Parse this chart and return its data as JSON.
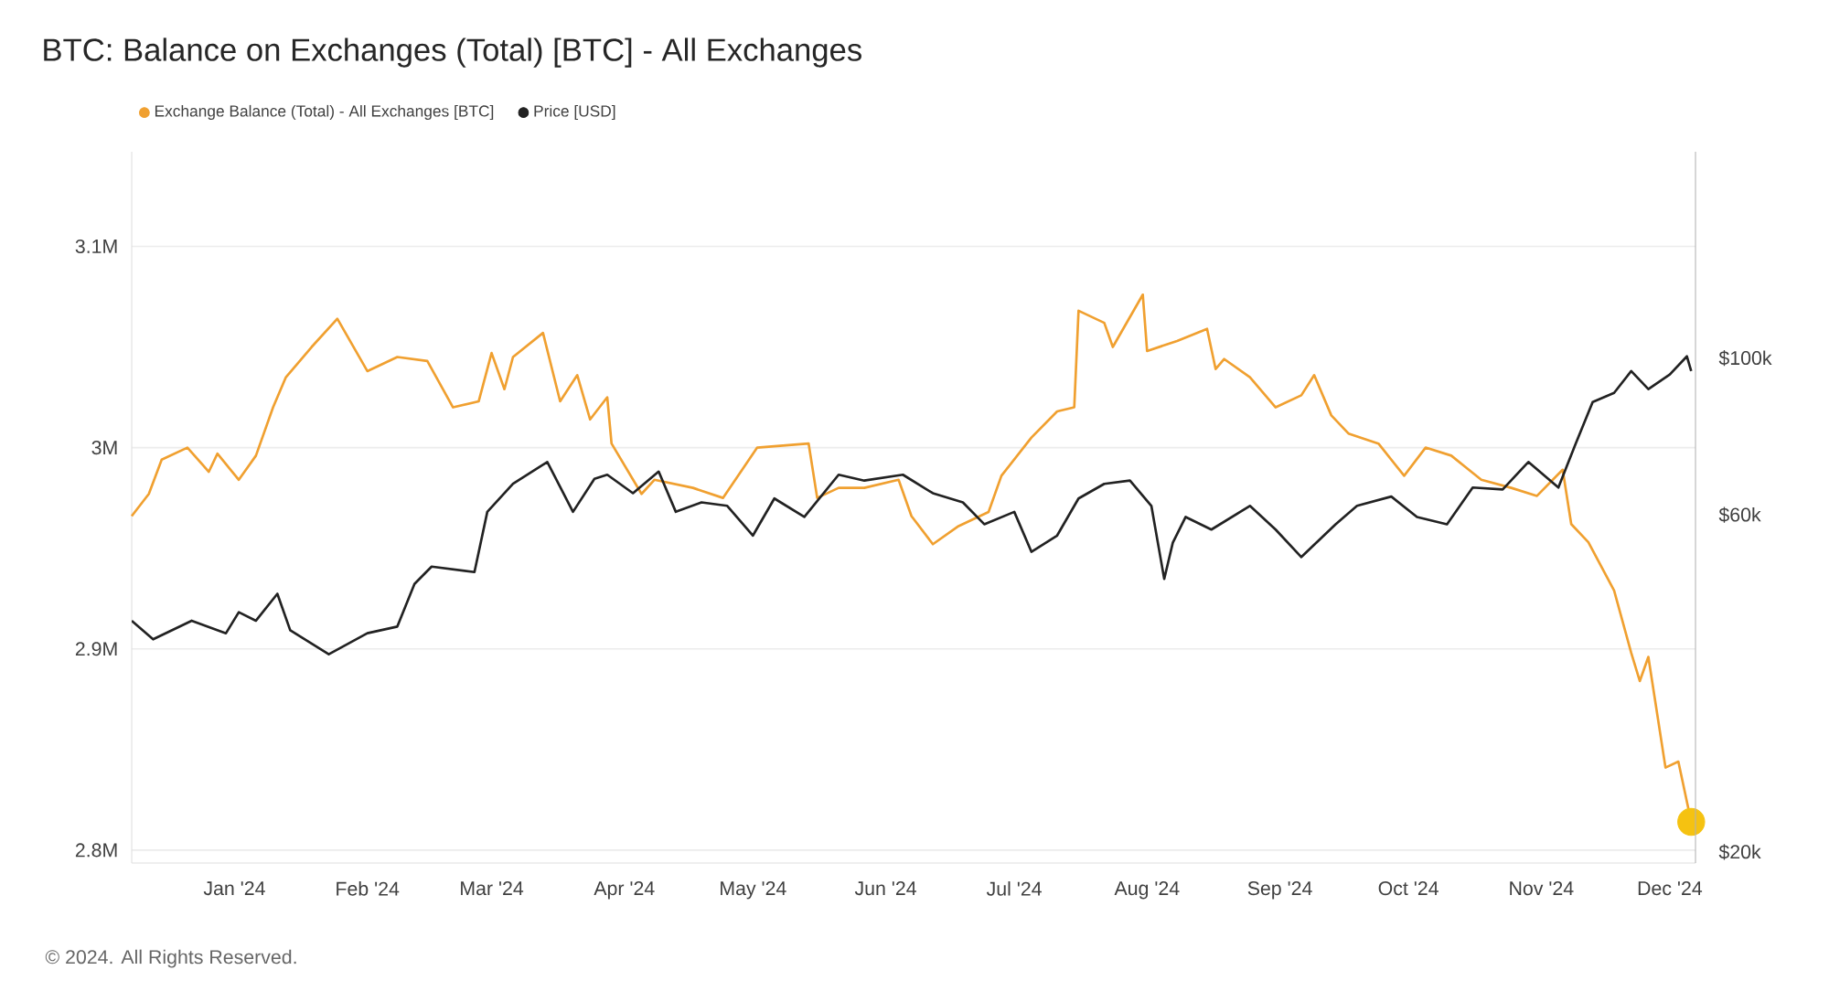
{
  "chart_data": {
    "type": "line",
    "title": "BTC: Balance on Exchanges (Total) [BTC] - All Exchanges",
    "annotations": [
      "© 2024. All Rights Reserved."
    ],
    "xlim": [
      "2023-12-08",
      "2024-12-07"
    ],
    "xticks": [
      {
        "value": "2024-01-01",
        "label": "Jan '24"
      },
      {
        "value": "2024-02-01",
        "label": "Feb '24"
      },
      {
        "value": "2024-03-01",
        "label": "Mar '24"
      },
      {
        "value": "2024-04-01",
        "label": "Apr '24"
      },
      {
        "value": "2024-05-01",
        "label": "May '24"
      },
      {
        "value": "2024-06-01",
        "label": "Jun '24"
      },
      {
        "value": "2024-07-01",
        "label": "Jul '24"
      },
      {
        "value": "2024-08-01",
        "label": "Aug '24"
      },
      {
        "value": "2024-09-01",
        "label": "Sep '24"
      },
      {
        "value": "2024-10-01",
        "label": "Oct '24"
      },
      {
        "value": "2024-11-01",
        "label": "Nov '24"
      },
      {
        "value": "2024-12-01",
        "label": "Dec '24"
      }
    ],
    "ylim": [
      2793600,
      3147000
    ],
    "yticks": [
      {
        "value": 2800000,
        "label": "2.8M"
      },
      {
        "value": 2900000,
        "label": "2.9M"
      },
      {
        "value": 3000000,
        "label": "3M"
      },
      {
        "value": 3100000,
        "label": "3.1M"
      }
    ],
    "y2lim": [
      19300,
      196000
    ],
    "y2ticks": [
      {
        "value": 20000,
        "label": "$20k"
      },
      {
        "value": 60000,
        "label": "$60k"
      },
      {
        "value": 100000,
        "label": "$100k"
      }
    ],
    "log": "y2",
    "grid": "y",
    "legend": "top left",
    "line_style": "solid",
    "series": [
      {
        "name": "Exchange Balance (Total) - All Exchanges [BTC]",
        "color": "#f0a030",
        "x": [
          "2023-12-08",
          "2023-12-12",
          "2023-12-15",
          "2023-12-21",
          "2023-12-26",
          "2023-12-28",
          "2024-01-02",
          "2024-01-06",
          "2024-01-10",
          "2024-01-13",
          "2024-01-19",
          "2024-01-25",
          "2024-02-01",
          "2024-02-08",
          "2024-02-15",
          "2024-02-21",
          "2024-02-27",
          "2024-03-01",
          "2024-03-04",
          "2024-03-06",
          "2024-03-13",
          "2024-03-17",
          "2024-03-21",
          "2024-03-24",
          "2024-03-28",
          "2024-03-29",
          "2024-04-05",
          "2024-04-08",
          "2024-04-17",
          "2024-04-24",
          "2024-05-02",
          "2024-05-14",
          "2024-05-16",
          "2024-05-21",
          "2024-05-27",
          "2024-06-04",
          "2024-06-07",
          "2024-06-12",
          "2024-06-18",
          "2024-06-25",
          "2024-06-28",
          "2024-07-05",
          "2024-07-11",
          "2024-07-15",
          "2024-07-16",
          "2024-07-22",
          "2024-07-24",
          "2024-07-31",
          "2024-08-01",
          "2024-08-08",
          "2024-08-15",
          "2024-08-17",
          "2024-08-19",
          "2024-08-25",
          "2024-08-31",
          "2024-09-06",
          "2024-09-09",
          "2024-09-13",
          "2024-09-17",
          "2024-09-24",
          "2024-09-30",
          "2024-10-05",
          "2024-10-11",
          "2024-10-18",
          "2024-10-25",
          "2024-10-31",
          "2024-11-06",
          "2024-11-08",
          "2024-11-12",
          "2024-11-18",
          "2024-11-22",
          "2024-11-24",
          "2024-11-26",
          "2024-11-30",
          "2024-12-03",
          "2024-12-06"
        ],
        "values": [
          2966000,
          2977000,
          2994000,
          3000000,
          2988000,
          2997000,
          2984000,
          2996000,
          3020000,
          3035000,
          3050000,
          3064000,
          3038000,
          3045000,
          3043000,
          3020000,
          3023000,
          3047000,
          3029000,
          3045000,
          3057000,
          3023000,
          3036000,
          3014000,
          3025000,
          3002000,
          2977000,
          2984000,
          2980000,
          2975000,
          3000000,
          3002000,
          2975000,
          2980000,
          2980000,
          2984000,
          2966000,
          2952000,
          2961000,
          2968000,
          2986000,
          3005000,
          3018000,
          3020000,
          3068000,
          3062000,
          3050000,
          3076000,
          3048000,
          3053000,
          3059000,
          3039000,
          3044000,
          3035000,
          3020000,
          3026000,
          3036000,
          3016000,
          3007000,
          3002000,
          2986000,
          3000000,
          2996000,
          2984000,
          2980000,
          2976000,
          2989000,
          2962000,
          2953000,
          2929000,
          2898000,
          2884000,
          2896000,
          2841000,
          2844000,
          2814000
        ]
      },
      {
        "name": "Price [USD]",
        "color": "#222222",
        "axis": "y2",
        "x": [
          "2023-12-08",
          "2023-12-13",
          "2023-12-22",
          "2023-12-30",
          "2024-01-02",
          "2024-01-06",
          "2024-01-11",
          "2024-01-14",
          "2024-01-23",
          "2024-02-01",
          "2024-02-08",
          "2024-02-12",
          "2024-02-16",
          "2024-02-26",
          "2024-02-29",
          "2024-03-06",
          "2024-03-14",
          "2024-03-20",
          "2024-03-25",
          "2024-03-28",
          "2024-04-03",
          "2024-04-09",
          "2024-04-13",
          "2024-04-19",
          "2024-04-25",
          "2024-05-01",
          "2024-05-06",
          "2024-05-13",
          "2024-05-21",
          "2024-05-27",
          "2024-06-05",
          "2024-06-12",
          "2024-06-19",
          "2024-06-24",
          "2024-07-01",
          "2024-07-05",
          "2024-07-11",
          "2024-07-16",
          "2024-07-22",
          "2024-07-28",
          "2024-08-02",
          "2024-08-05",
          "2024-08-07",
          "2024-08-10",
          "2024-08-16",
          "2024-08-25",
          "2024-08-31",
          "2024-09-06",
          "2024-09-14",
          "2024-09-19",
          "2024-09-27",
          "2024-10-03",
          "2024-10-10",
          "2024-10-16",
          "2024-10-23",
          "2024-10-29",
          "2024-11-05",
          "2024-11-09",
          "2024-11-13",
          "2024-11-18",
          "2024-11-22",
          "2024-11-26",
          "2024-12-01",
          "2024-12-05",
          "2024-12-06"
        ],
        "values": [
          42500,
          40000,
          42500,
          40800,
          43700,
          42500,
          46400,
          41200,
          38100,
          40800,
          41700,
          47900,
          50700,
          49800,
          60600,
          66400,
          71300,
          60600,
          67500,
          68400,
          64400,
          69100,
          60600,
          62500,
          61800,
          56100,
          63300,
          59600,
          68400,
          67100,
          68400,
          64400,
          62500,
          58200,
          60600,
          53200,
          56100,
          63300,
          66400,
          67100,
          61800,
          48700,
          54800,
          59600,
          57200,
          61800,
          57200,
          52300,
          58200,
          61800,
          63700,
          59600,
          58200,
          65600,
          65200,
          71300,
          65600,
          75600,
          86700,
          89300,
          95900,
          90400,
          94800,
          100600,
          95900
        ]
      },
      {
        "type": "scatter",
        "color": "#f5c211",
        "x": [
          "2024-12-06"
        ],
        "values": [
          2814000
        ]
      }
    ]
  }
}
